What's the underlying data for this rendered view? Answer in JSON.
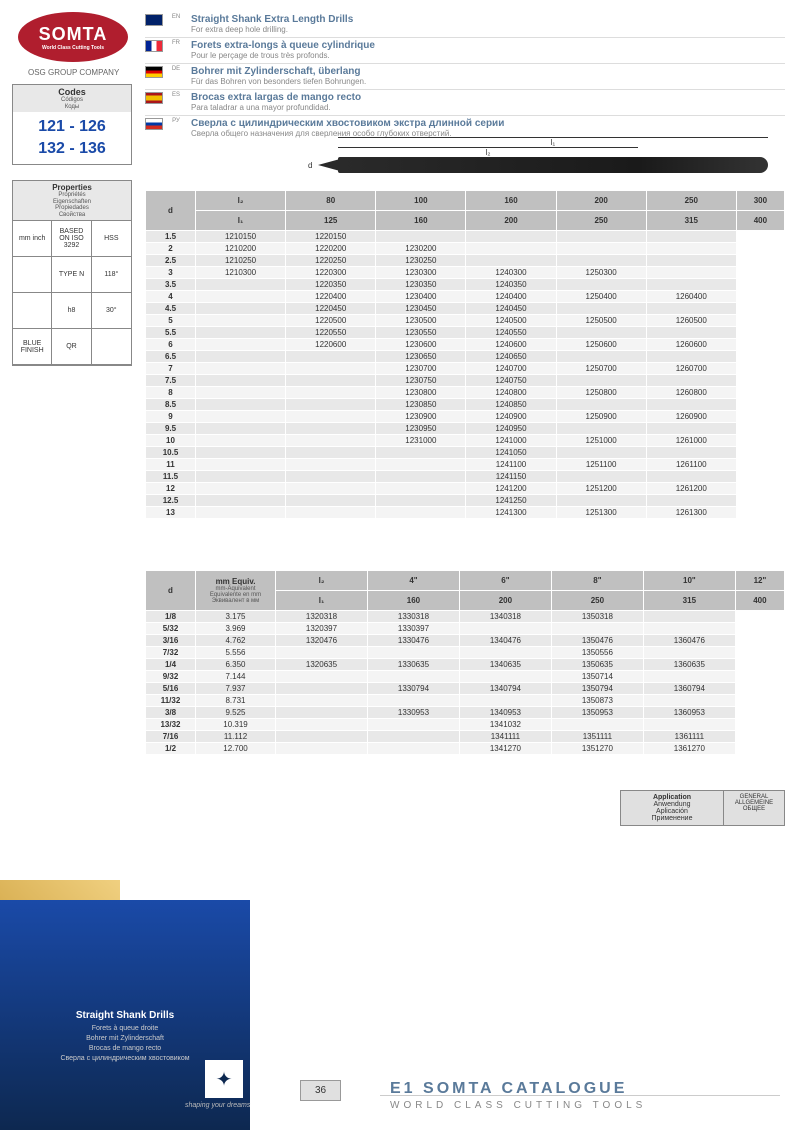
{
  "brand": {
    "name": "SOMTA",
    "slogan": "World Class Cutting Tools",
    "group": "OSG GROUP COMPANY"
  },
  "codes": {
    "header": "Codes",
    "subs": [
      "Códigos",
      "Коды"
    ],
    "ranges": [
      "121 - 126",
      "132 - 136"
    ]
  },
  "properties": {
    "header": "Properties",
    "subs": [
      "Propriétés",
      "Eigenschaften",
      "Propiedades",
      "Свойства"
    ],
    "cells": [
      "mm inch",
      "BASED ON ISO 3292",
      "HSS",
      "",
      "TYPE N",
      "118°",
      "",
      "h8",
      "30°",
      "BLUE FINISH",
      "QR",
      ""
    ]
  },
  "langs": [
    {
      "code": "EN",
      "flag": "en",
      "title": "Straight Shank Extra Length Drills",
      "desc": "For extra deep hole drilling."
    },
    {
      "code": "FR",
      "flag": "fr",
      "title": "Forets extra-longs à queue cylindrique",
      "desc": "Pour le perçage de trous très profonds."
    },
    {
      "code": "DE",
      "flag": "de",
      "title": "Bohrer mit Zylinderschaft, überlang",
      "desc": "Für das Bohren von besonders tiefen Bohrungen."
    },
    {
      "code": "ES",
      "flag": "es",
      "title": "Brocas extra largas de mango recto",
      "desc": "Para taladrar a una mayor profundidad."
    },
    {
      "code": "РУ",
      "flag": "ru",
      "title": "Сверла с цилиндрическим хвостовиком экстра длинной серии",
      "desc": "Сверла общего назначения для сверления особо глубоких отверстий."
    }
  ],
  "diagram": {
    "l1": "l₁",
    "l2": "l₂",
    "d": "d"
  },
  "table1": {
    "d_label": "d",
    "l2_label": "l₂",
    "l1_label": "l₁",
    "l2_values": [
      "80",
      "100",
      "160",
      "200",
      "250",
      "300"
    ],
    "l1_values": [
      "125",
      "160",
      "200",
      "250",
      "315",
      "400"
    ],
    "rows": [
      [
        "1.5",
        "1210150",
        "1220150",
        "",
        "",
        "",
        ""
      ],
      [
        "2",
        "1210200",
        "1220200",
        "1230200",
        "",
        "",
        ""
      ],
      [
        "2.5",
        "1210250",
        "1220250",
        "1230250",
        "",
        "",
        ""
      ],
      [
        "3",
        "1210300",
        "1220300",
        "1230300",
        "1240300",
        "1250300",
        ""
      ],
      [
        "3.5",
        "",
        "1220350",
        "1230350",
        "1240350",
        "",
        ""
      ],
      [
        "4",
        "",
        "1220400",
        "1230400",
        "1240400",
        "1250400",
        "1260400"
      ],
      [
        "4.5",
        "",
        "1220450",
        "1230450",
        "1240450",
        "",
        ""
      ],
      [
        "5",
        "",
        "1220500",
        "1230500",
        "1240500",
        "1250500",
        "1260500"
      ],
      [
        "5.5",
        "",
        "1220550",
        "1230550",
        "1240550",
        "",
        ""
      ],
      [
        "6",
        "",
        "1220600",
        "1230600",
        "1240600",
        "1250600",
        "1260600"
      ],
      [
        "6.5",
        "",
        "",
        "1230650",
        "1240650",
        "",
        ""
      ],
      [
        "7",
        "",
        "",
        "1230700",
        "1240700",
        "1250700",
        "1260700"
      ],
      [
        "7.5",
        "",
        "",
        "1230750",
        "1240750",
        "",
        ""
      ],
      [
        "8",
        "",
        "",
        "1230800",
        "1240800",
        "1250800",
        "1260800"
      ],
      [
        "8.5",
        "",
        "",
        "1230850",
        "1240850",
        "",
        ""
      ],
      [
        "9",
        "",
        "",
        "1230900",
        "1240900",
        "1250900",
        "1260900"
      ],
      [
        "9.5",
        "",
        "",
        "1230950",
        "1240950",
        "",
        ""
      ],
      [
        "10",
        "",
        "",
        "1231000",
        "1241000",
        "1251000",
        "1261000"
      ],
      [
        "10.5",
        "",
        "",
        "",
        "1241050",
        "",
        ""
      ],
      [
        "11",
        "",
        "",
        "",
        "1241100",
        "1251100",
        "1261100"
      ],
      [
        "11.5",
        "",
        "",
        "",
        "1241150",
        "",
        ""
      ],
      [
        "12",
        "",
        "",
        "",
        "1241200",
        "1251200",
        "1261200"
      ],
      [
        "12.5",
        "",
        "",
        "",
        "1241250",
        "",
        ""
      ],
      [
        "13",
        "",
        "",
        "",
        "1241300",
        "1251300",
        "1261300"
      ]
    ]
  },
  "table2": {
    "d_label": "d",
    "equiv_label": "mm Equiv.",
    "equiv_subs": [
      "mm-Äquivalent",
      "Equivalente en mm",
      "Эквивалент в мм"
    ],
    "l2_label": "l₂",
    "l1_label": "l₁",
    "l2_values": [
      "4\"",
      "6\"",
      "8\"",
      "10\"",
      "12\""
    ],
    "l1_values": [
      "160",
      "200",
      "250",
      "315",
      "400"
    ],
    "rows": [
      [
        "1/8",
        "3.175",
        "1320318",
        "1330318",
        "1340318",
        "1350318",
        ""
      ],
      [
        "5/32",
        "3.969",
        "1320397",
        "1330397",
        "",
        "",
        ""
      ],
      [
        "3/16",
        "4.762",
        "1320476",
        "1330476",
        "1340476",
        "1350476",
        "1360476"
      ],
      [
        "7/32",
        "5.556",
        "",
        "",
        "",
        "1350556",
        ""
      ],
      [
        "1/4",
        "6.350",
        "1320635",
        "1330635",
        "1340635",
        "1350635",
        "1360635"
      ],
      [
        "9/32",
        "7.144",
        "",
        "",
        "",
        "1350714",
        ""
      ],
      [
        "5/16",
        "7.937",
        "",
        "1330794",
        "1340794",
        "1350794",
        "1360794"
      ],
      [
        "11/32",
        "8.731",
        "",
        "",
        "",
        "1350873",
        ""
      ],
      [
        "3/8",
        "9.525",
        "",
        "1330953",
        "1340953",
        "1350953",
        "1360953"
      ],
      [
        "13/32",
        "10.319",
        "",
        "",
        "1341032",
        "",
        ""
      ],
      [
        "7/16",
        "11.112",
        "",
        "",
        "1341111",
        "1351111",
        "1361111"
      ],
      [
        "1/2",
        "12.700",
        "",
        "",
        "1341270",
        "1351270",
        "1361270"
      ]
    ]
  },
  "application": {
    "label": "Application",
    "subs": [
      "Anwendung",
      "Aplicación",
      "Применение"
    ],
    "value": "GENERAL ALLGEMEINE ОБЩЕЕ"
  },
  "footer": {
    "title": "Straight Shank Drills",
    "items": [
      "Forets à queue droite",
      "Bohrer mit Zylinderschaft",
      "Brocas de mango recto",
      "Сверла с цилиндрическим хвостовиком"
    ],
    "page": "36",
    "catalogue": "E1 SOMTA CATALOGUE",
    "catalogue_sub": "WORLD CLASS CUTTING TOOLS",
    "tagline": "shaping your dreams"
  }
}
